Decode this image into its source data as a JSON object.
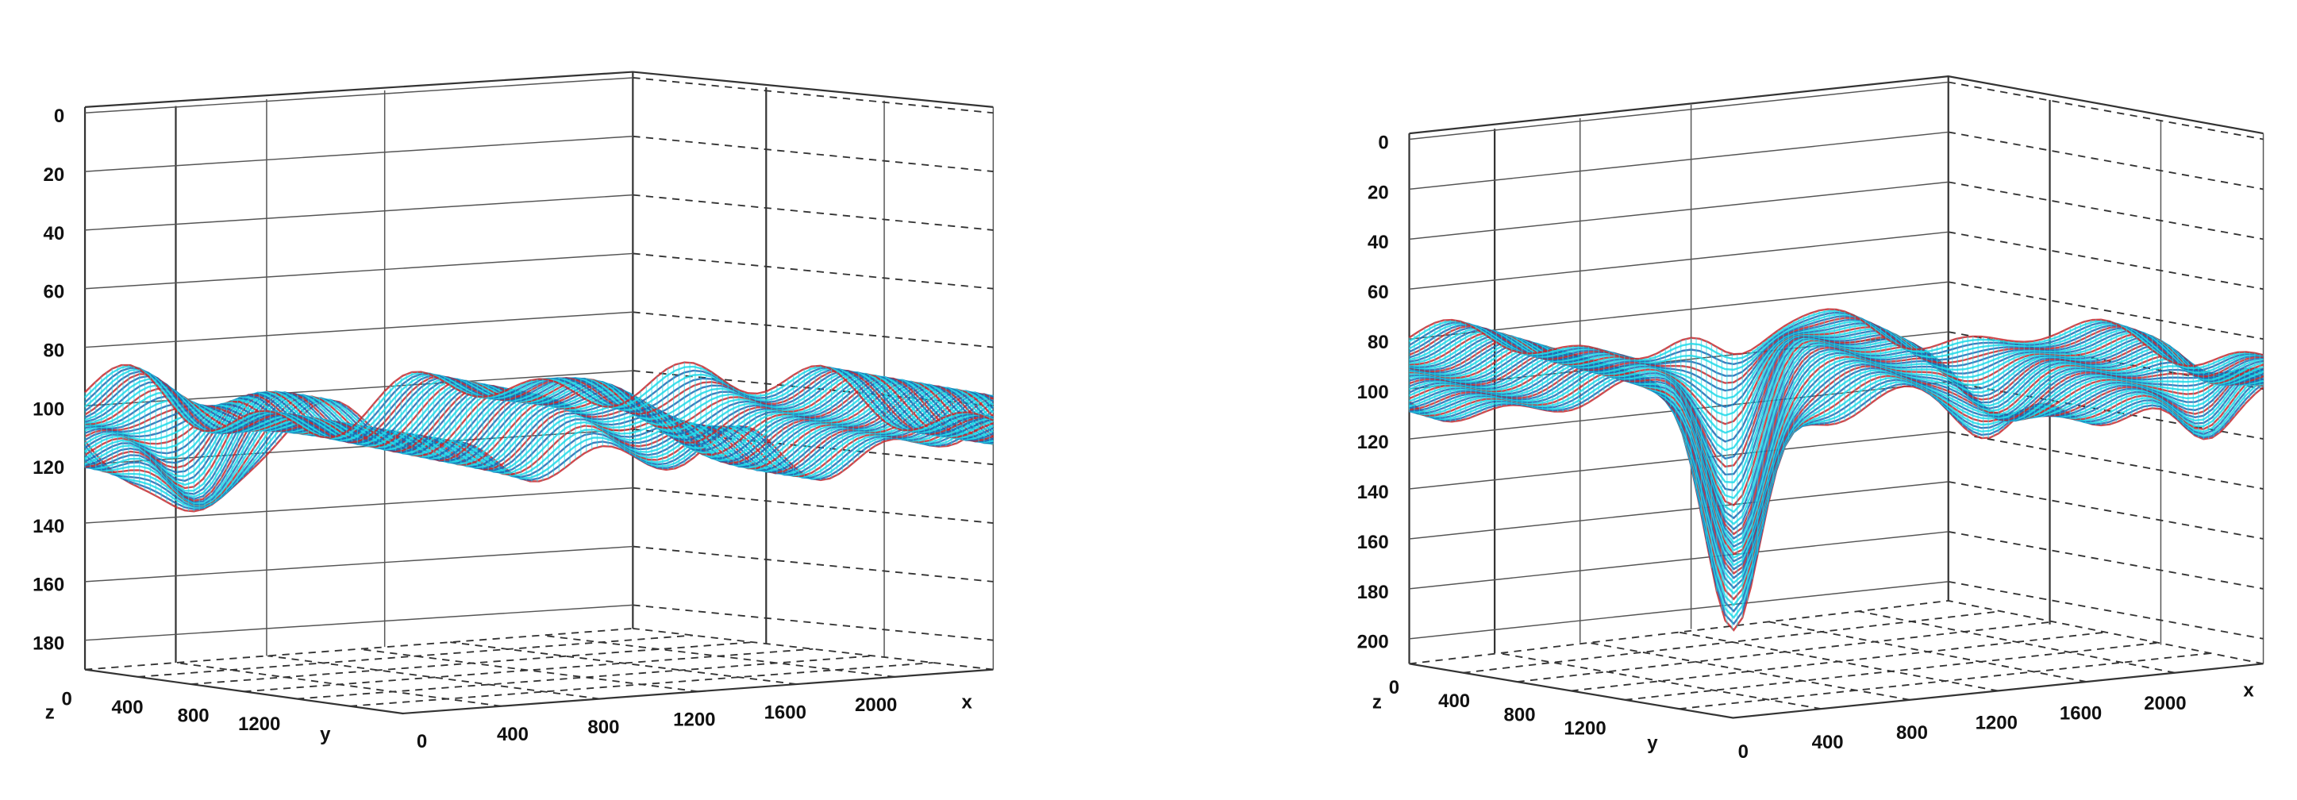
{
  "chart_data": [
    {
      "type": "surface3d",
      "x_label": "x",
      "y_label": "y",
      "z_label": "z",
      "xticks": [
        0,
        400,
        800,
        1200,
        1600,
        2000
      ],
      "yticks": [
        0,
        400,
        800,
        1200
      ],
      "zticks": [
        0,
        20,
        40,
        60,
        80,
        100,
        120,
        140,
        160,
        180
      ],
      "zlim": [
        0,
        190
      ],
      "z_inverted": true,
      "colors": [
        "#20d8e8",
        "#1f66b0",
        "#c8282d"
      ]
    },
    {
      "type": "surface3d",
      "x_label": "x",
      "y_label": "y",
      "z_label": "z",
      "xticks": [
        0,
        400,
        800,
        1200,
        1600,
        2000
      ],
      "yticks": [
        0,
        400,
        800,
        1200
      ],
      "zticks": [
        0,
        20,
        40,
        60,
        80,
        100,
        120,
        140,
        160,
        180,
        200
      ],
      "zlim": [
        0,
        210
      ],
      "z_inverted": true,
      "colors": [
        "#20d8e8",
        "#1f66b0",
        "#c8282d"
      ]
    }
  ]
}
